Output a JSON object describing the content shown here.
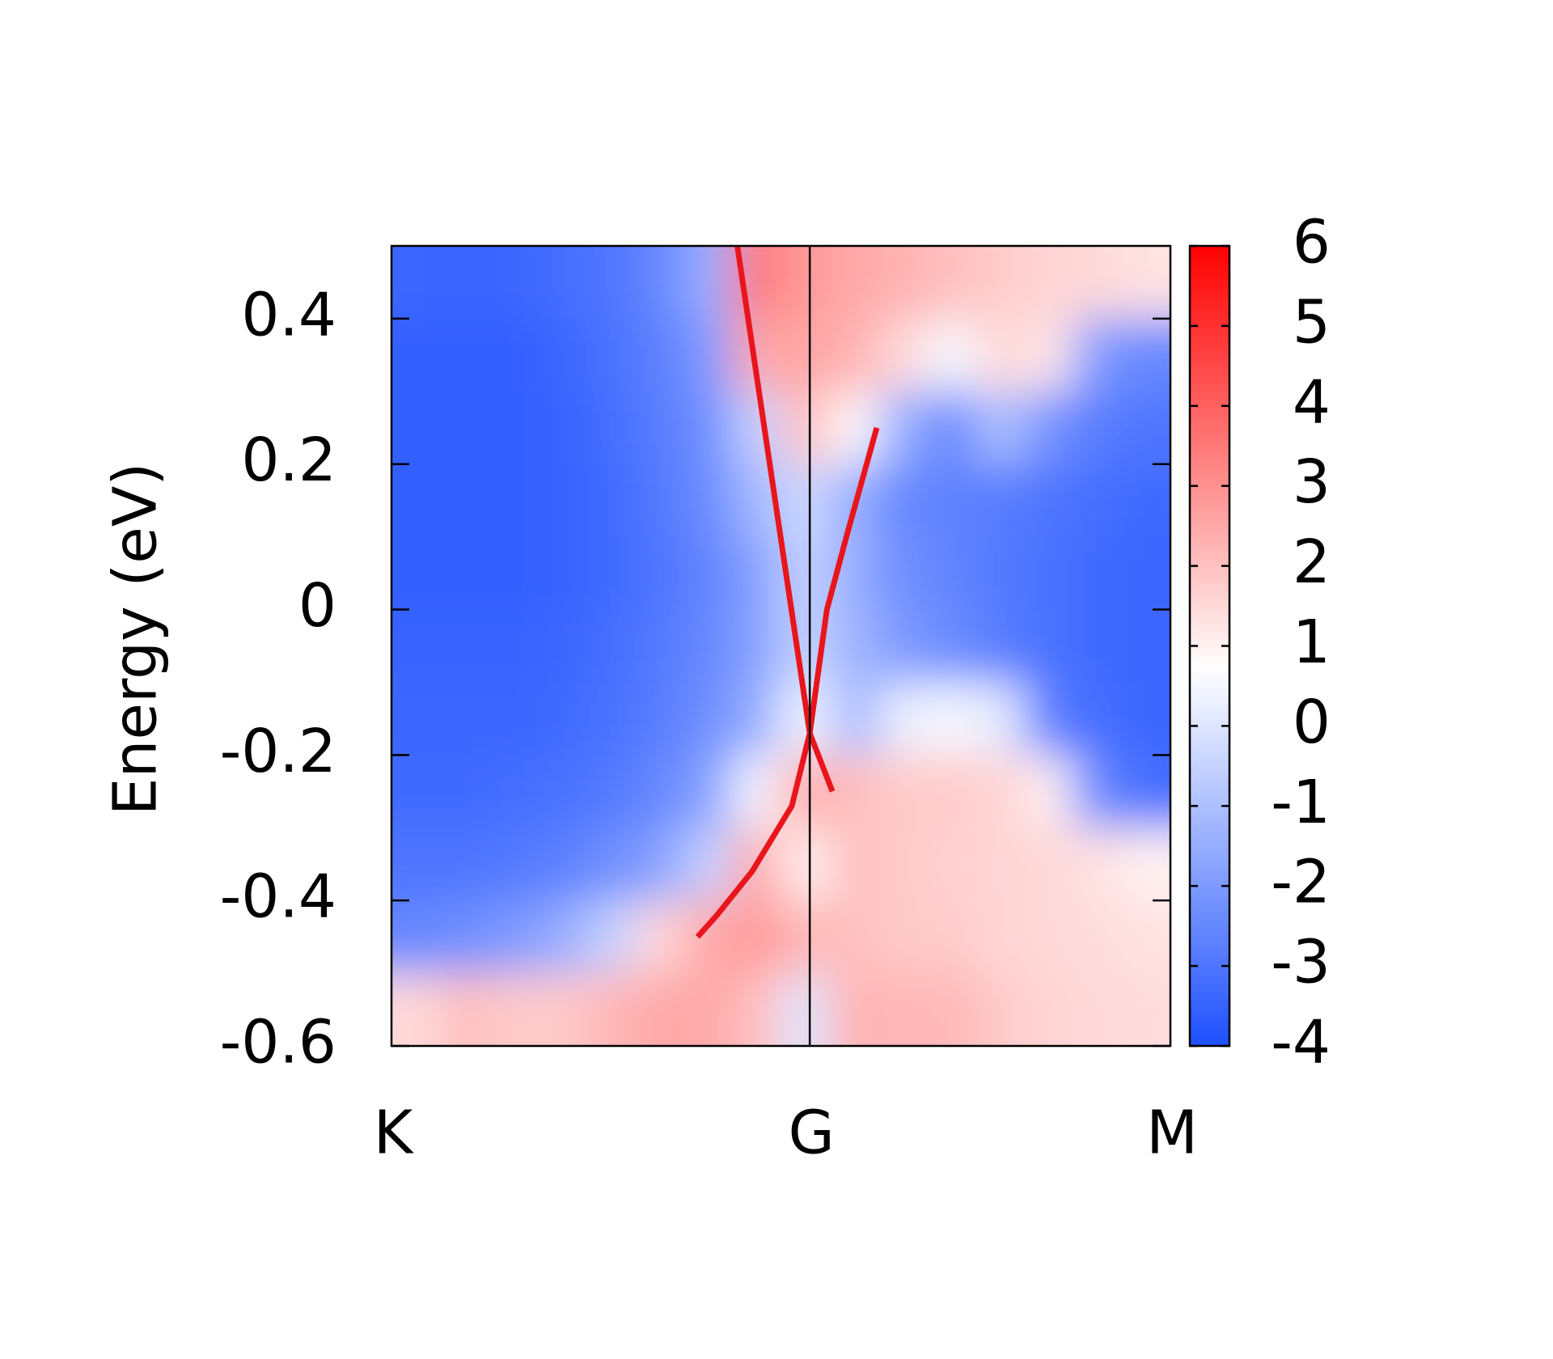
{
  "chart_data": {
    "type": "heatmap",
    "y_label": "Energy (eV)",
    "xlim": [
      0,
      1
    ],
    "xticks": [
      {
        "value": 0,
        "label": "K"
      },
      {
        "value": 0.537,
        "label": "G"
      },
      {
        "value": 1,
        "label": "M"
      }
    ],
    "ylim": [
      -0.6,
      0.5
    ],
    "yticks": [
      -0.6,
      -0.4,
      -0.2,
      0,
      0.2,
      0.4
    ],
    "zlim": [
      -4,
      6
    ],
    "zticks": [
      -4,
      -3,
      -2,
      -1,
      0,
      1,
      2,
      3,
      4,
      5,
      6
    ],
    "colorscale": [
      {
        "value": -4,
        "color": "#1f50ff"
      },
      {
        "value": 0.7,
        "color": "#ffffff"
      },
      {
        "value": 6,
        "color": "#ff0000"
      }
    ],
    "x": [
      0.031,
      0.094,
      0.156,
      0.219,
      0.281,
      0.344,
      0.406,
      0.469,
      0.531,
      0.594,
      0.656,
      0.719,
      0.781,
      0.844,
      0.906,
      0.969
    ],
    "y": [
      0.45,
      0.35,
      0.25,
      0.15,
      0.05,
      -0.05,
      -0.15,
      -0.25,
      -0.35,
      -0.45,
      -0.55
    ],
    "z": [
      [
        -3.4,
        -3.5,
        -3.4,
        -3.2,
        -3.0,
        -2.5,
        -1.5,
        3.5,
        2.8,
        2.5,
        2.3,
        2.0,
        1.8,
        1.6,
        1.5,
        1.3
      ],
      [
        -3.6,
        -3.6,
        -3.6,
        -3.4,
        -3.1,
        -2.7,
        -2.0,
        2.5,
        2.6,
        2.3,
        1.5,
        0.5,
        1.5,
        1.2,
        -2.0,
        -2.5
      ],
      [
        -3.6,
        -3.6,
        -3.6,
        -3.5,
        -3.2,
        -2.8,
        -2.3,
        -0.5,
        2.0,
        0.8,
        -1.5,
        -2.5,
        -1.0,
        -2.2,
        -2.8,
        -3.0
      ],
      [
        -3.6,
        -3.6,
        -3.6,
        -3.5,
        -3.3,
        -2.9,
        -2.4,
        -1.2,
        -0.3,
        -1.5,
        -2.5,
        -2.7,
        -2.8,
        -3.0,
        -3.2,
        -3.3
      ],
      [
        -3.6,
        -3.6,
        -3.6,
        -3.5,
        -3.3,
        -3.0,
        -2.6,
        -1.8,
        -0.5,
        -1.5,
        -2.3,
        -2.6,
        -2.9,
        -3.1,
        -3.3,
        -3.4
      ],
      [
        -3.5,
        -3.5,
        -3.5,
        -3.4,
        -3.2,
        -2.9,
        -2.5,
        -1.8,
        -0.5,
        -1.3,
        -2.0,
        -2.4,
        -2.8,
        -3.1,
        -3.3,
        -3.4
      ],
      [
        -3.4,
        -3.4,
        -3.4,
        -3.3,
        -3.1,
        -2.8,
        -2.3,
        -1.5,
        0.5,
        -1.2,
        0.3,
        0.5,
        0.2,
        -2.8,
        -3.2,
        -3.4
      ],
      [
        -3.3,
        -3.3,
        -3.2,
        -3.1,
        -2.9,
        -2.5,
        -1.8,
        0.5,
        2.5,
        2.0,
        1.8,
        1.8,
        1.6,
        1.0,
        -2.5,
        -3.2
      ],
      [
        -3.0,
        -3.0,
        -2.9,
        -2.7,
        -2.3,
        -1.8,
        -0.5,
        2.5,
        1.0,
        2.0,
        1.8,
        1.7,
        1.6,
        1.5,
        1.3,
        1.0
      ],
      [
        -2.5,
        -2.3,
        -2.0,
        -1.5,
        -0.5,
        1.5,
        2.5,
        2.8,
        2.2,
        2.0,
        1.8,
        1.8,
        1.6,
        1.5,
        1.4,
        1.3
      ],
      [
        1.5,
        2.0,
        1.8,
        1.8,
        2.2,
        2.5,
        2.5,
        2.0,
        0.0,
        2.3,
        2.2,
        2.2,
        1.8,
        1.6,
        1.5,
        1.4
      ]
    ],
    "lines": [
      {
        "color": "#e8161c",
        "x": [
          0.444,
          0.537,
          0.566
        ],
        "y": [
          0.5,
          -0.17,
          -0.25
        ]
      },
      {
        "color": "#e8161c",
        "x": [
          0.623,
          0.584,
          0.559,
          0.537,
          0.514,
          0.463,
          0.418,
          0.393
        ],
        "y": [
          0.25,
          0.1,
          0,
          -0.17,
          -0.27,
          -0.36,
          -0.42,
          -0.45
        ]
      }
    ]
  }
}
